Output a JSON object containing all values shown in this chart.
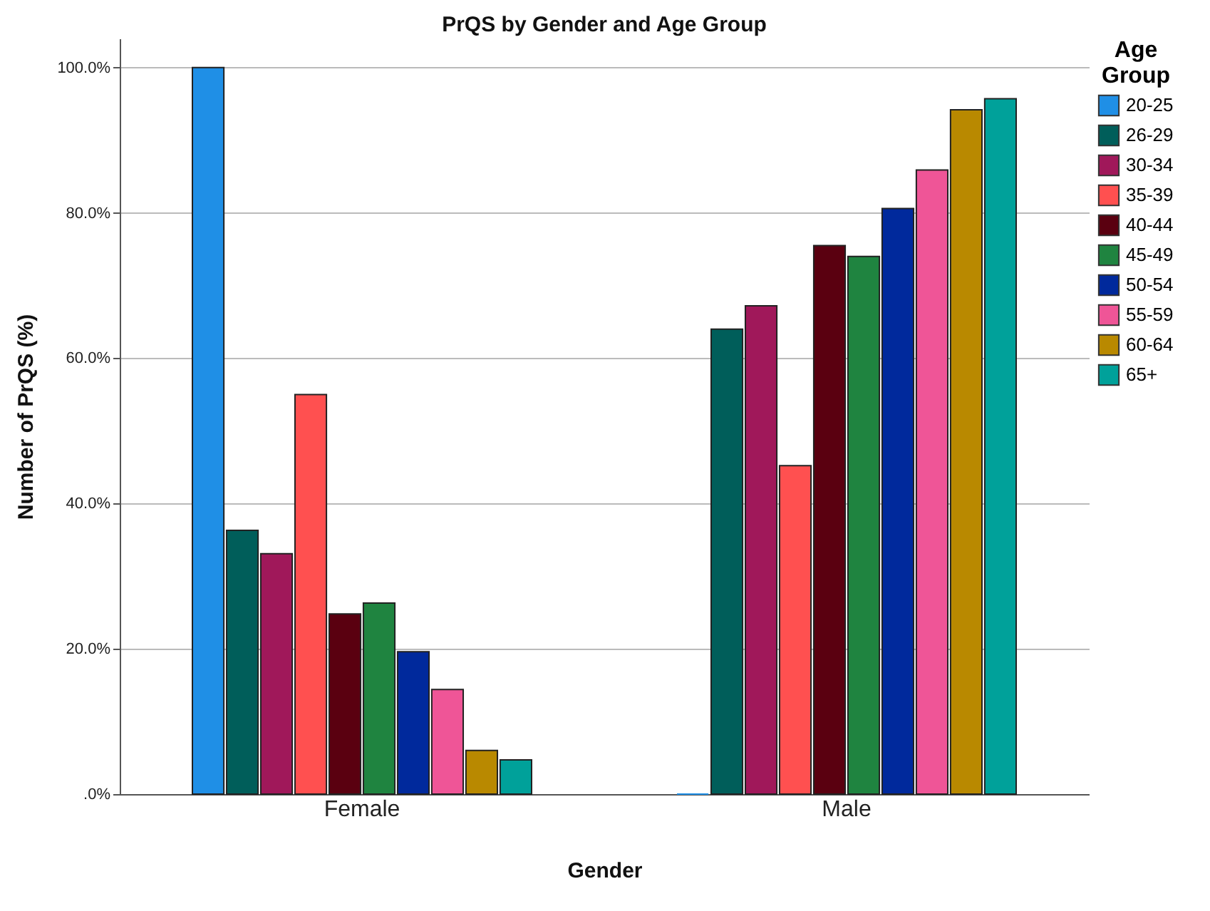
{
  "chart_data": {
    "type": "bar",
    "title": "PrQS by Gender and Age Group",
    "xlabel": "Gender",
    "ylabel": "Number of PrQS (%)",
    "legend_title": "Age Group",
    "categories": [
      "Female",
      "Male"
    ],
    "series": [
      {
        "name": "20-25",
        "color": "#1f8fe6",
        "values": [
          100,
          0
        ]
      },
      {
        "name": "26-29",
        "color": "#005e5a",
        "values": [
          36.3,
          64.0
        ]
      },
      {
        "name": "30-34",
        "color": "#a0185a",
        "values": [
          33.1,
          67.2
        ]
      },
      {
        "name": "35-39",
        "color": "#ff5050",
        "values": [
          55.0,
          45.2
        ]
      },
      {
        "name": "40-44",
        "color": "#5a0010",
        "values": [
          24.8,
          75.5
        ]
      },
      {
        "name": "45-49",
        "color": "#1f8440",
        "values": [
          26.3,
          74.0
        ]
      },
      {
        "name": "50-54",
        "color": "#00299c",
        "values": [
          19.6,
          80.6
        ]
      },
      {
        "name": "55-59",
        "color": "#ef5597",
        "values": [
          14.4,
          85.9
        ]
      },
      {
        "name": "60-64",
        "color": "#b98900",
        "values": [
          6.0,
          94.2
        ]
      },
      {
        "name": "65+",
        "color": "#00a19a",
        "values": [
          4.7,
          95.7
        ]
      }
    ],
    "ylim": [
      0,
      104
    ],
    "yticks": [
      {
        "value": 0,
        "label": ".0%"
      },
      {
        "value": 20,
        "label": "20.0%"
      },
      {
        "value": 40,
        "label": "40.0%"
      },
      {
        "value": 60,
        "label": "60.0%"
      },
      {
        "value": 80,
        "label": "80.0%"
      },
      {
        "value": 100,
        "label": "100.0%"
      }
    ],
    "grid": "y",
    "legend": "top right"
  }
}
